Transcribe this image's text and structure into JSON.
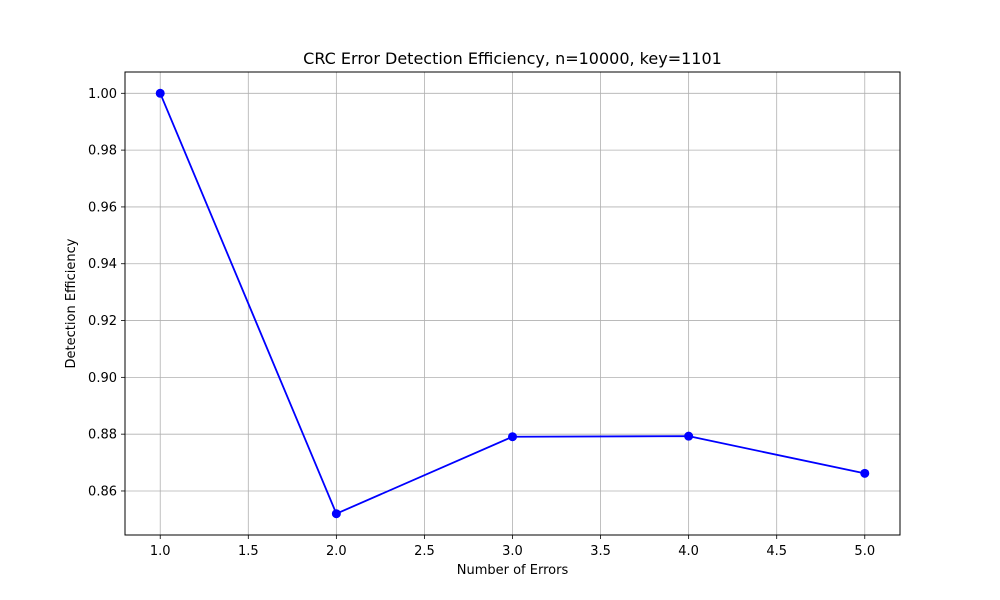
{
  "chart_data": {
    "type": "line",
    "title": "CRC Error Detection Efficiency, n=10000, key=1101",
    "xlabel": "Number of Errors",
    "ylabel": "Detection Efficiency",
    "xlim": [
      0.8,
      5.2
    ],
    "ylim": [
      0.8445,
      1.0075
    ],
    "xticks": [
      1.0,
      1.5,
      2.0,
      2.5,
      3.0,
      3.5,
      4.0,
      4.5,
      5.0
    ],
    "xtick_labels": [
      "1.0",
      "1.5",
      "2.0",
      "2.5",
      "3.0",
      "3.5",
      "4.0",
      "4.5",
      "5.0"
    ],
    "yticks": [
      0.86,
      0.88,
      0.9,
      0.92,
      0.94,
      0.96,
      0.98,
      1.0
    ],
    "ytick_labels": [
      "0.86",
      "0.88",
      "0.90",
      "0.92",
      "0.94",
      "0.96",
      "0.98",
      "1.00"
    ],
    "grid": true,
    "series": [
      {
        "color": "#0000ff",
        "marker": "circle",
        "x": [
          1,
          2,
          3,
          4,
          5
        ],
        "y": [
          1.0,
          0.852,
          0.8791,
          0.8793,
          0.8662
        ]
      }
    ]
  }
}
